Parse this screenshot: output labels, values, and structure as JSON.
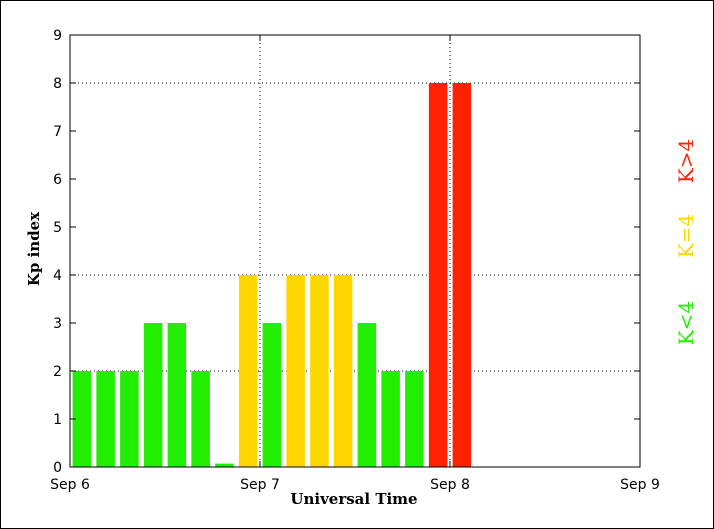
{
  "chart_data": {
    "type": "bar",
    "xlabel": "Universal Time",
    "ylabel": "Kp index",
    "ylim": [
      0,
      9
    ],
    "yticks": [
      "0",
      "1",
      "2",
      "3",
      "4",
      "5",
      "6",
      "7",
      "8",
      "9"
    ],
    "xticks": [
      "Sep 6",
      "Sep 7",
      "Sep 8",
      "Sep 9"
    ],
    "x_range_days": [
      0,
      3
    ],
    "grid": true,
    "bars": [
      {
        "t": 0.0625,
        "value": 2,
        "cls": "green"
      },
      {
        "t": 0.1875,
        "value": 2,
        "cls": "green"
      },
      {
        "t": 0.3125,
        "value": 2,
        "cls": "green"
      },
      {
        "t": 0.4375,
        "value": 3,
        "cls": "green"
      },
      {
        "t": 0.5625,
        "value": 3,
        "cls": "green"
      },
      {
        "t": 0.6875,
        "value": 2,
        "cls": "green"
      },
      {
        "t": 0.8125,
        "value": 0.07,
        "cls": "green"
      },
      {
        "t": 0.9375,
        "value": 4,
        "cls": "yellow"
      },
      {
        "t": 1.0625,
        "value": 3,
        "cls": "green"
      },
      {
        "t": 1.1875,
        "value": 4,
        "cls": "yellow"
      },
      {
        "t": 1.3125,
        "value": 4,
        "cls": "yellow"
      },
      {
        "t": 1.4375,
        "value": 4,
        "cls": "yellow"
      },
      {
        "t": 1.5625,
        "value": 3,
        "cls": "green"
      },
      {
        "t": 1.6875,
        "value": 2,
        "cls": "green"
      },
      {
        "t": 1.8125,
        "value": 2,
        "cls": "green"
      },
      {
        "t": 1.9375,
        "value": 8,
        "cls": "red"
      },
      {
        "t": 2.0625,
        "value": 8,
        "cls": "red"
      }
    ],
    "colors": {
      "green": "#22ee00",
      "yellow": "#ffd700",
      "red": "#ff2200"
    },
    "legend": [
      {
        "label": "K<4",
        "cls": "green"
      },
      {
        "label": "K=4",
        "cls": "yellow"
      },
      {
        "label": "K>4",
        "cls": "red"
      }
    ]
  }
}
